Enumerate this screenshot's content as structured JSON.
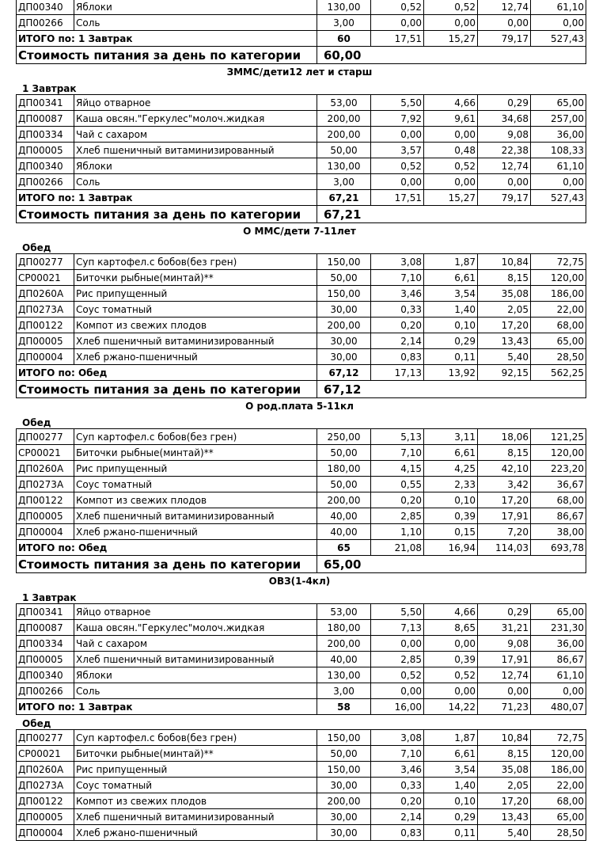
{
  "labels": {
    "total_prefix": "ИТОГО по: ",
    "cost": "Стоимость питания за день по категории"
  },
  "blocks": [
    {
      "title": "",
      "meals": [
        {
          "name": "",
          "rows": [
            [
              "ДП00340",
              "Яблоки",
              "130,00",
              "0,52",
              "0,52",
              "12,74",
              "61,10"
            ],
            [
              "ДП00266",
              "Соль",
              "3,00",
              "0,00",
              "0,00",
              "0,00",
              "0,00"
            ]
          ],
          "total": {
            "label": "ИТОГО по: 1 Завтрак",
            "qty": "60",
            "vals": [
              "17,51",
              "15,27",
              "79,17",
              "527,43"
            ]
          }
        }
      ],
      "cost": "60,00"
    },
    {
      "title": "ЗММС/дети12 лет и старш",
      "meals": [
        {
          "name": "1 Завтрак",
          "rows": [
            [
              "ДП00341",
              "Яйцо отварное",
              "53,00",
              "5,50",
              "4,66",
              "0,29",
              "65,00"
            ],
            [
              "ДП00087",
              "Каша овсян.\"Геркулес\"молоч.жидкая",
              "200,00",
              "7,92",
              "9,61",
              "34,68",
              "257,00"
            ],
            [
              "ДП00334",
              "Чай с сахаром",
              "200,00",
              "0,00",
              "0,00",
              "9,08",
              "36,00"
            ],
            [
              "ДП00005",
              "Хлеб пшеничный витаминизированный",
              "50,00",
              "3,57",
              "0,48",
              "22,38",
              "108,33"
            ],
            [
              "ДП00340",
              "Яблоки",
              "130,00",
              "0,52",
              "0,52",
              "12,74",
              "61,10"
            ],
            [
              "ДП00266",
              "Соль",
              "3,00",
              "0,00",
              "0,00",
              "0,00",
              "0,00"
            ]
          ],
          "total": {
            "label": "ИТОГО по: 1 Завтрак",
            "qty": "67,21",
            "vals": [
              "17,51",
              "15,27",
              "79,17",
              "527,43"
            ]
          }
        }
      ],
      "cost": "67,21"
    },
    {
      "title": "О ММС/дети 7-11лет",
      "meals": [
        {
          "name": "Обед",
          "rows": [
            [
              "ДП00277",
              "Суп картофел.с бобов(без грен)",
              "150,00",
              "3,08",
              "1,87",
              "10,84",
              "72,75"
            ],
            [
              "СР00021",
              "Биточки рыбные(минтай)**",
              "50,00",
              "7,10",
              "6,61",
              "8,15",
              "120,00"
            ],
            [
              "ДП0260А",
              "Рис припущенный",
              "150,00",
              "3,46",
              "3,54",
              "35,08",
              "186,00"
            ],
            [
              "ДП0273А",
              "Соус томатный",
              "30,00",
              "0,33",
              "1,40",
              "2,05",
              "22,00"
            ],
            [
              "ДП00122",
              "Компот из свежих плодов",
              "200,00",
              "0,20",
              "0,10",
              "17,20",
              "68,00"
            ],
            [
              "ДП00005",
              "Хлеб пшеничный витаминизированный",
              "30,00",
              "2,14",
              "0,29",
              "13,43",
              "65,00"
            ],
            [
              "ДП00004",
              "Хлеб ржано-пшеничный",
              "30,00",
              "0,83",
              "0,11",
              "5,40",
              "28,50"
            ]
          ],
          "total": {
            "label": "ИТОГО по: Обед",
            "qty": "67,12",
            "vals": [
              "17,13",
              "13,92",
              "92,15",
              "562,25"
            ]
          }
        }
      ],
      "cost": "67,12"
    },
    {
      "title": "О род.плата 5-11кл",
      "meals": [
        {
          "name": "Обед",
          "rows": [
            [
              "ДП00277",
              "Суп картофел.с бобов(без грен)",
              "250,00",
              "5,13",
              "3,11",
              "18,06",
              "121,25"
            ],
            [
              "СР00021",
              "Биточки рыбные(минтай)**",
              "50,00",
              "7,10",
              "6,61",
              "8,15",
              "120,00"
            ],
            [
              "ДП0260А",
              "Рис припущенный",
              "180,00",
              "4,15",
              "4,25",
              "42,10",
              "223,20"
            ],
            [
              "ДП0273А",
              "Соус томатный",
              "50,00",
              "0,55",
              "2,33",
              "3,42",
              "36,67"
            ],
            [
              "ДП00122",
              "Компот из свежих плодов",
              "200,00",
              "0,20",
              "0,10",
              "17,20",
              "68,00"
            ],
            [
              "ДП00005",
              "Хлеб пшеничный витаминизированный",
              "40,00",
              "2,85",
              "0,39",
              "17,91",
              "86,67"
            ],
            [
              "ДП00004",
              "Хлеб ржано-пшеничный",
              "40,00",
              "1,10",
              "0,15",
              "7,20",
              "38,00"
            ]
          ],
          "total": {
            "label": "ИТОГО по: Обед",
            "qty": "65",
            "vals": [
              "21,08",
              "16,94",
              "114,03",
              "693,78"
            ]
          }
        }
      ],
      "cost": "65,00"
    },
    {
      "title": "ОВЗ(1-4кл)",
      "meals": [
        {
          "name": "1 Завтрак",
          "rows": [
            [
              "ДП00341",
              "Яйцо отварное",
              "53,00",
              "5,50",
              "4,66",
              "0,29",
              "65,00"
            ],
            [
              "ДП00087",
              "Каша овсян.\"Геркулес\"молоч.жидкая",
              "180,00",
              "7,13",
              "8,65",
              "31,21",
              "231,30"
            ],
            [
              "ДП00334",
              "Чай с сахаром",
              "200,00",
              "0,00",
              "0,00",
              "9,08",
              "36,00"
            ],
            [
              "ДП00005",
              "Хлеб пшеничный витаминизированный",
              "40,00",
              "2,85",
              "0,39",
              "17,91",
              "86,67"
            ],
            [
              "ДП00340",
              "Яблоки",
              "130,00",
              "0,52",
              "0,52",
              "12,74",
              "61,10"
            ],
            [
              "ДП00266",
              "Соль",
              "3,00",
              "0,00",
              "0,00",
              "0,00",
              "0,00"
            ]
          ],
          "total": {
            "label": "ИТОГО по: 1 Завтрак",
            "qty": "58",
            "vals": [
              "16,00",
              "14,22",
              "71,23",
              "480,07"
            ]
          }
        },
        {
          "name": "Обед",
          "rows": [
            [
              "ДП00277",
              "Суп картофел.с бобов(без грен)",
              "150,00",
              "3,08",
              "1,87",
              "10,84",
              "72,75"
            ],
            [
              "СР00021",
              "Биточки рыбные(минтай)**",
              "50,00",
              "7,10",
              "6,61",
              "8,15",
              "120,00"
            ],
            [
              "ДП0260А",
              "Рис припущенный",
              "150,00",
              "3,46",
              "3,54",
              "35,08",
              "186,00"
            ],
            [
              "ДП0273А",
              "Соус томатный",
              "30,00",
              "0,33",
              "1,40",
              "2,05",
              "22,00"
            ],
            [
              "ДП00122",
              "Компот из свежих плодов",
              "200,00",
              "0,20",
              "0,10",
              "17,20",
              "68,00"
            ],
            [
              "ДП00005",
              "Хлеб пшеничный витаминизированный",
              "30,00",
              "2,14",
              "0,29",
              "13,43",
              "65,00"
            ],
            [
              "ДП00004",
              "Хлеб ржано-пшеничный",
              "30,00",
              "0,83",
              "0,11",
              "5,40",
              "28,50"
            ]
          ]
        }
      ],
      "cost": null
    }
  ]
}
